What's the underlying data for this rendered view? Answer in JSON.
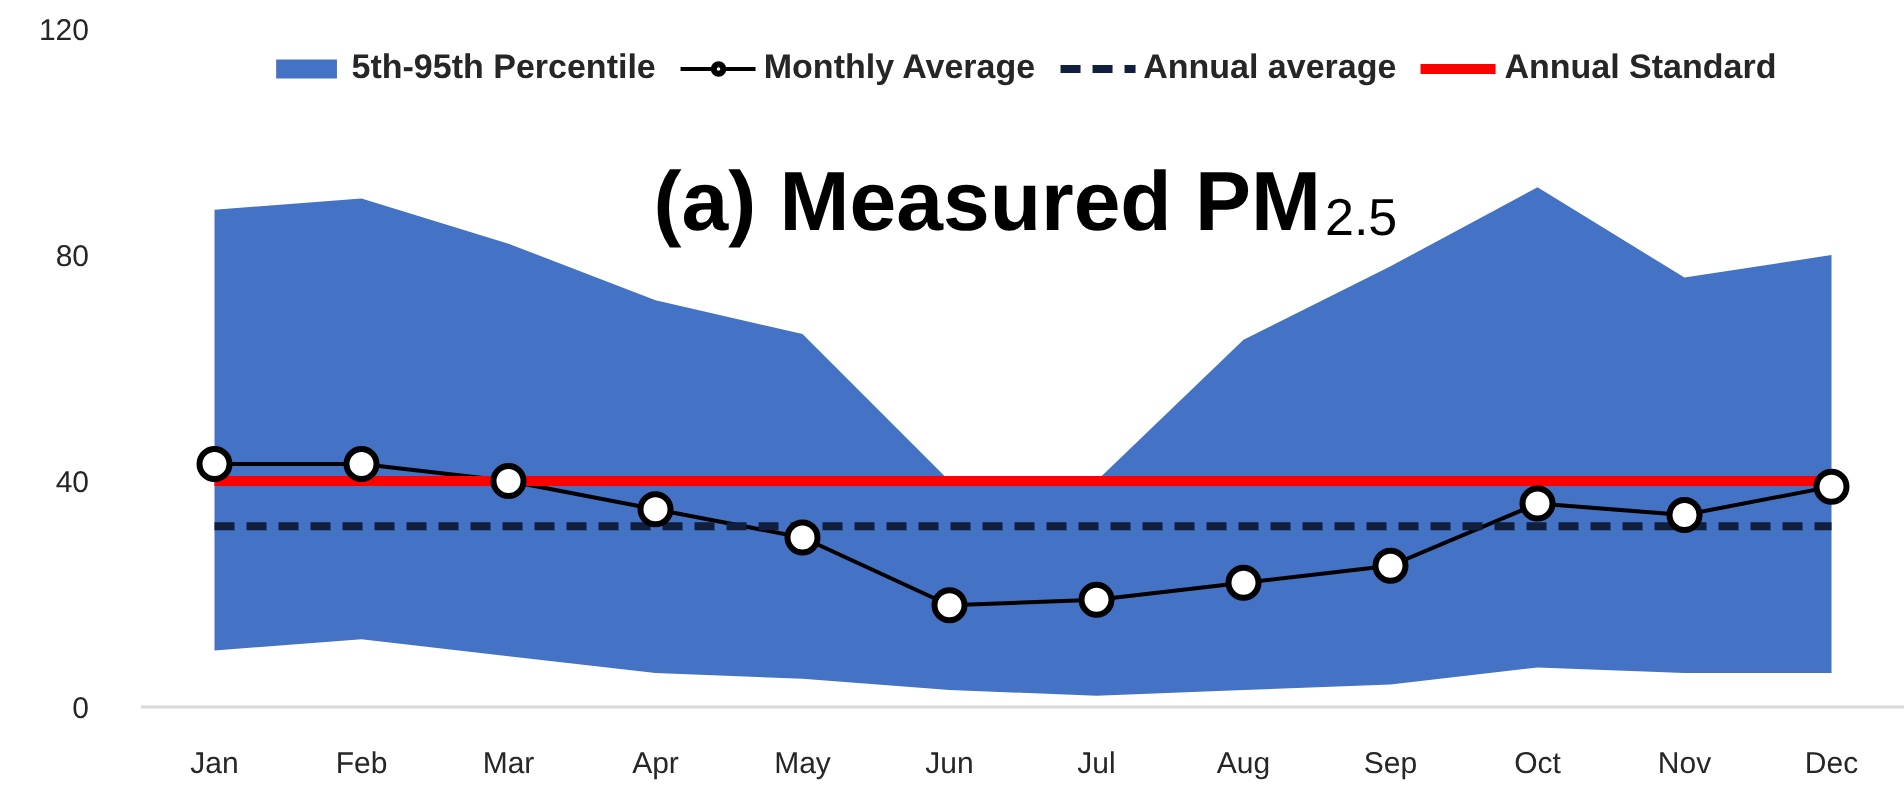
{
  "chart_data": {
    "type": "line",
    "title": "(a) Measured PM$_{2.5}$",
    "categories": [
      "Jan",
      "Feb",
      "Mar",
      "Apr",
      "May",
      "Jun",
      "Jul",
      "Aug",
      "Sep",
      "Oct",
      "Nov",
      "Dec"
    ],
    "series": [
      {
        "name": "5th-95th Percentile",
        "color": "#4472c4",
        "values": [
          null,
          null,
          null,
          null,
          null,
          null,
          null,
          null,
          null,
          null,
          null,
          null
        ],
        "lower": [
          10,
          12,
          9,
          6,
          5,
          3,
          2,
          3,
          4,
          7,
          6,
          6
        ],
        "upper": [
          88,
          90,
          82,
          72,
          66,
          40,
          40,
          65,
          78,
          92,
          76,
          80
        ]
      },
      {
        "name": "Monthly Average",
        "color": "#000000",
        "marker": "circle",
        "values": [
          43,
          43,
          40,
          35,
          30,
          18,
          19,
          22,
          25,
          36,
          34,
          39
        ]
      },
      {
        "name": "Annual average",
        "color": "#0f1f3d",
        "line_style": "dashed",
        "values": [
          32,
          32,
          32,
          32,
          32,
          32,
          32,
          32,
          32,
          32,
          32,
          32
        ]
      },
      {
        "name": "Annual Standard",
        "color": "#ff0000",
        "values": [
          40,
          40,
          40,
          40,
          40,
          40,
          40,
          40,
          40,
          40,
          40,
          40
        ]
      }
    ],
    "ylim": [
      0,
      120
    ],
    "yticks": [
      0,
      40,
      80,
      120
    ],
    "grid": false,
    "legend": "top",
    "line_style": "solid"
  }
}
